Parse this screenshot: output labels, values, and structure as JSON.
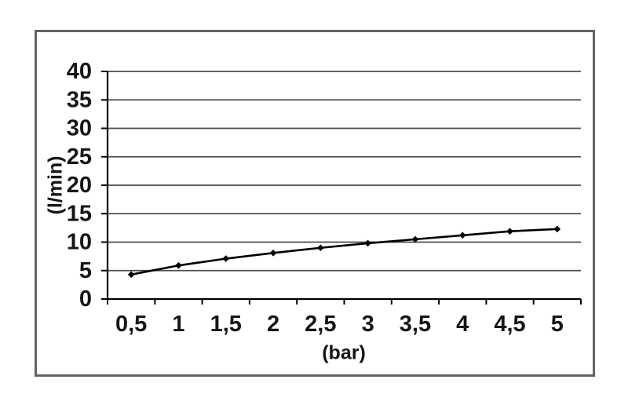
{
  "page": {
    "background_color": "#ffffff"
  },
  "frame": {
    "border_color": "#636363"
  },
  "chart_data": {
    "type": "line",
    "x": [
      0.5,
      1,
      1.5,
      2,
      2.5,
      3,
      3.5,
      4,
      4.5,
      5
    ],
    "x_labels": [
      "0,5",
      "1",
      "1,5",
      "2",
      "2,5",
      "3",
      "3,5",
      "4",
      "4,5",
      "5"
    ],
    "values": [
      4.3,
      5.9,
      7.1,
      8.1,
      9.0,
      9.8,
      10.5,
      11.2,
      11.9,
      12.3
    ],
    "xlabel": "(bar)",
    "ylabel": "(l/min)",
    "ylim": [
      0,
      40
    ],
    "y_ticks": [
      0,
      5,
      10,
      15,
      20,
      25,
      30,
      35,
      40
    ],
    "grid": true,
    "legend": false,
    "marker": "diamond",
    "line_color": "#000000",
    "grid_color": "#4d4d4d",
    "axis_color": "#000000",
    "text_color": "#161616"
  }
}
